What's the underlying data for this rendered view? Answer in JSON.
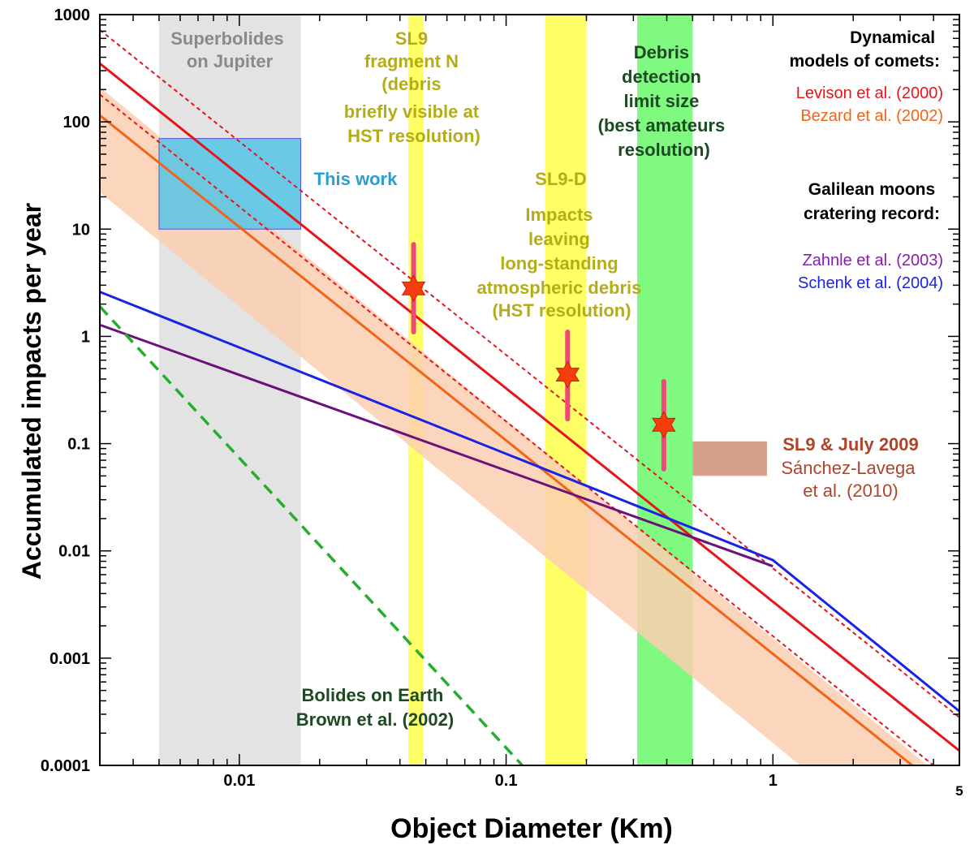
{
  "chart_data": {
    "type": "line",
    "xscale": "log",
    "yscale": "log",
    "xlim": [
      0.003,
      5
    ],
    "ylim": [
      0.0001,
      1000
    ],
    "xlabel": "Object Diameter (Km)",
    "ylabel": "Accumulated impacts per year",
    "x_ticks": [
      {
        "value": 0.01,
        "label": "0.01"
      },
      {
        "value": 0.1,
        "label": "0.1"
      },
      {
        "value": 1,
        "label": "1"
      },
      {
        "value": 5,
        "label": "5"
      }
    ],
    "y_ticks": [
      {
        "value": 1000,
        "label": "1000"
      },
      {
        "value": 100,
        "label": "100"
      },
      {
        "value": 10,
        "label": "10"
      },
      {
        "value": 1,
        "label": "1"
      },
      {
        "value": 0.1,
        "label": "0.1"
      },
      {
        "value": 0.01,
        "label": "0.01"
      },
      {
        "value": 0.001,
        "label": "0.001"
      },
      {
        "value": 0.0001,
        "label": "0.0001"
      }
    ],
    "bands": [
      {
        "name": "superbolides-band",
        "x0": 0.005,
        "x1": 0.017,
        "color": "#e3e3e3"
      },
      {
        "name": "sl9-fragment-n-band",
        "x0": 0.043,
        "x1": 0.049,
        "color": "#ffff66"
      },
      {
        "name": "sl9-d-band",
        "x0": 0.14,
        "x1": 0.2,
        "color": "#ffff66"
      },
      {
        "name": "debris-detection-band",
        "x0": 0.31,
        "x1": 0.5,
        "color": "#7ff97f"
      }
    ],
    "shaded_range": {
      "name": "bezard-uncertainty-band",
      "color": "#fbcfb0",
      "x": [
        0.003,
        3.8
      ],
      "upper": [
        210,
        0.0001
      ],
      "lower": [
        22,
        1.07e-05
      ]
    },
    "boxes": [
      {
        "name": "this-work-box",
        "x0": 0.005,
        "x1": 0.017,
        "y0": 10,
        "y1": 70,
        "color": "#4fc3e8"
      },
      {
        "name": "sl9-july-2009-box",
        "x0": 0.5,
        "x1": 0.95,
        "y0": 0.05,
        "y1": 0.105,
        "color": "#d6a18a"
      }
    ],
    "series": [
      {
        "name": "Levison et al. (2000)",
        "color": "#e8141b",
        "style": "solid",
        "x": [
          0.003,
          5
        ],
        "y": [
          350,
          0.000137
        ]
      },
      {
        "name": "Levison et al. (2000) dotted",
        "color": "#e8141b",
        "style": "dotted",
        "x": [
          0.003,
          5
        ],
        "y": [
          720,
          0.00028
        ]
      },
      {
        "name": "Bezard et al. (2002)",
        "color": "#f26419",
        "style": "solid",
        "x": [
          0.003,
          3.33
        ],
        "y": [
          115,
          0.0001
        ]
      },
      {
        "name": "Bezard et al. (2002) dotted",
        "color": "#e8141b",
        "style": "dotted",
        "x": [
          0.003,
          4
        ],
        "y": [
          180,
          0.0001
        ]
      },
      {
        "name": "Zahnle et al. (2003)",
        "color": "#6a117a",
        "style": "solid",
        "x": [
          0.003,
          1
        ],
        "y": [
          1.28,
          0.0072
        ]
      },
      {
        "name": "Schenk et al. (2004)",
        "color": "#1a22e6",
        "style": "solid",
        "x": [
          0.003,
          1,
          5
        ],
        "y": [
          2.6,
          0.0082,
          0.00032
        ]
      },
      {
        "name": "Brown et al. (2002)",
        "color": "#22b02a",
        "style": "dashed",
        "x": [
          0.003,
          0.115
        ],
        "y": [
          1.9,
          0.0001
        ]
      }
    ],
    "points": [
      {
        "name": "sl9-fragment-n-point",
        "x": 0.045,
        "y": 2.8,
        "ylow": 1.1,
        "yhigh": 7.2
      },
      {
        "name": "sl9-d-point",
        "x": 0.17,
        "y": 0.44,
        "ylow": 0.17,
        "yhigh": 1.1
      },
      {
        "name": "debris-limit-point",
        "x": 0.39,
        "y": 0.15,
        "ylow": 0.058,
        "yhigh": 0.38
      }
    ],
    "errorbar_color": "#f0467a",
    "marker_color": "#f53d10",
    "annotations": {
      "superbolides": [
        "Superbolides",
        "on Jupiter"
      ],
      "sl9_fragment_n": [
        "SL9",
        "fragment N",
        "(debris",
        "briefly visible at",
        "HST resolution)"
      ],
      "debris_limit": [
        "Debris",
        "detection",
        "limit size",
        "(best amateurs",
        "resolution)"
      ],
      "this_work": "This work",
      "sl9_d": [
        "SL9-D",
        "Impacts",
        "leaving",
        "long-standing",
        "atmospheric debris",
        "(HST resolution)"
      ],
      "dynamical_title": [
        "Dynamical",
        "models of comets:"
      ],
      "levison": "Levison et al. (2000)",
      "bezard": "Bezard et al. (2002)",
      "galilean_title": [
        "Galilean moons",
        "cratering record:"
      ],
      "zahnle": "Zahnle et al. (2003)",
      "schenk": "Schenk et al. (2004)",
      "sl9_july_title": "SL9 & July 2009",
      "sanchez": [
        "Sánchez-Lavega",
        "et al. (2010)"
      ],
      "bolides_earth": [
        "Bolides on Earth",
        "Brown et al. (2002)"
      ]
    }
  }
}
